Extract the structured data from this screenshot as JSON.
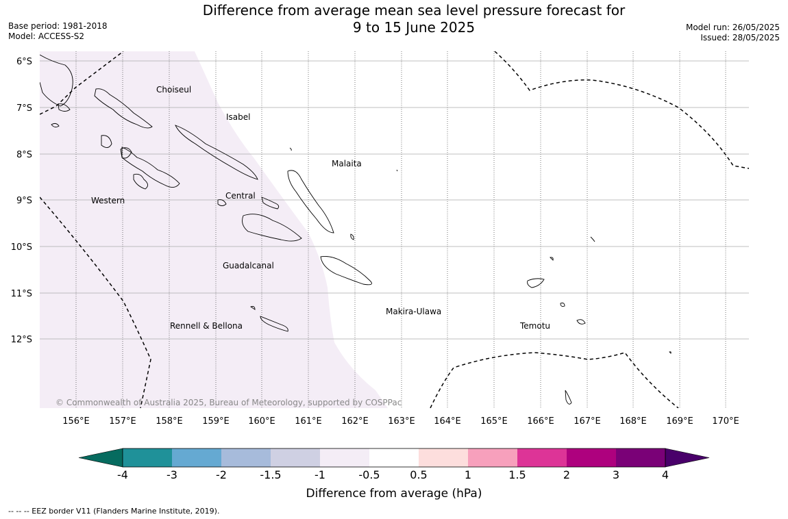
{
  "header": {
    "title_line1": "Difference from average mean sea level pressure forecast for",
    "title_line2": "9 to 15 June 2025",
    "base_period": "Base period: 1981-2018",
    "model": "Model: ACCESS-S2",
    "model_run": "Model run: 26/05/2025",
    "issued": "Issued: 28/05/2025"
  },
  "map": {
    "lat_labels": [
      "6°S",
      "7°S",
      "8°S",
      "9°S",
      "10°S",
      "11°S",
      "12°S"
    ],
    "lon_labels": [
      "156°E",
      "157°E",
      "158°E",
      "159°E",
      "160°E",
      "161°E",
      "162°E",
      "163°E",
      "164°E",
      "165°E",
      "166°E",
      "167°E",
      "168°E",
      "169°E",
      "170°E"
    ],
    "regions": {
      "choiseul": "Choiseul",
      "isabel": "Isabel",
      "malaita": "Malaita",
      "western": "Western",
      "central": "Central",
      "guadalcanal": "Guadalcanal",
      "makira": "Makira-Ulawa",
      "rennell": "Rennell & Bellona",
      "temotu": "Temotu"
    },
    "shaded_anomaly_band": "-1 to -0.5",
    "copyright": "© Commonwealth of Australia 2025, Bureau of Meteorology, supported by COSPPac"
  },
  "colorbar": {
    "colors": [
      "#066b5f",
      "#1f9199",
      "#65a9d2",
      "#a7bbdb",
      "#cfd0e3",
      "#f4edf6",
      "#ffffff",
      "#fddedd",
      "#f7a0bc",
      "#dd3497",
      "#ae017e",
      "#7a0177",
      "#49006a"
    ],
    "ticks": [
      "-4",
      "-3",
      "-2",
      "-1.5",
      "-1",
      "-0.5",
      "0.5",
      "1",
      "1.5",
      "2",
      "3",
      "4"
    ],
    "label": "Difference from average (hPa)"
  },
  "footnote": "--  --  -- EEZ border V11 (Flanders Marine Institute, 2019)."
}
